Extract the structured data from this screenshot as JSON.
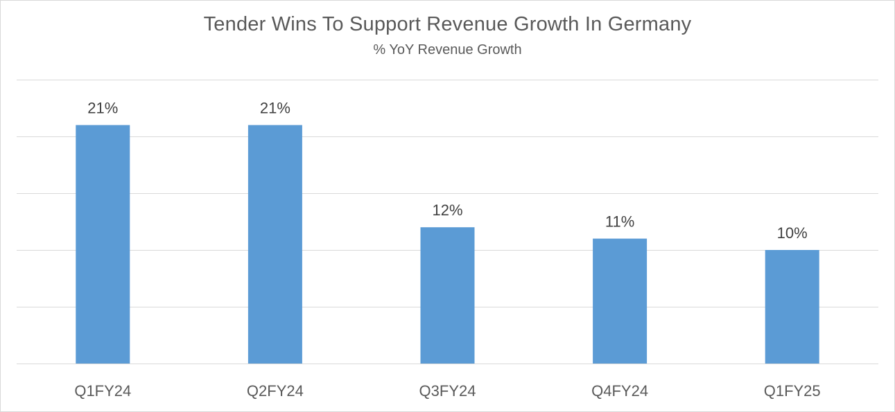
{
  "chart_data": {
    "type": "bar",
    "title": "Tender Wins To Support Revenue Growth In Germany",
    "subtitle": "% YoY Revenue Growth",
    "xlabel": "",
    "ylabel": "",
    "categories": [
      "Q1FY24",
      "Q2FY24",
      "Q3FY24",
      "Q4FY24",
      "Q1FY25"
    ],
    "values": [
      21,
      21,
      12,
      11,
      10
    ],
    "data_labels": [
      "21%",
      "21%",
      "12%",
      "11%",
      "10%"
    ],
    "ylim": [
      0,
      25
    ],
    "gridlines": [
      0,
      5,
      10,
      15,
      20,
      25
    ],
    "grid": true,
    "legend": "none",
    "colors": {
      "bar": "#5b9bd5",
      "grid": "#d9d9d9",
      "text": "#595959"
    }
  }
}
